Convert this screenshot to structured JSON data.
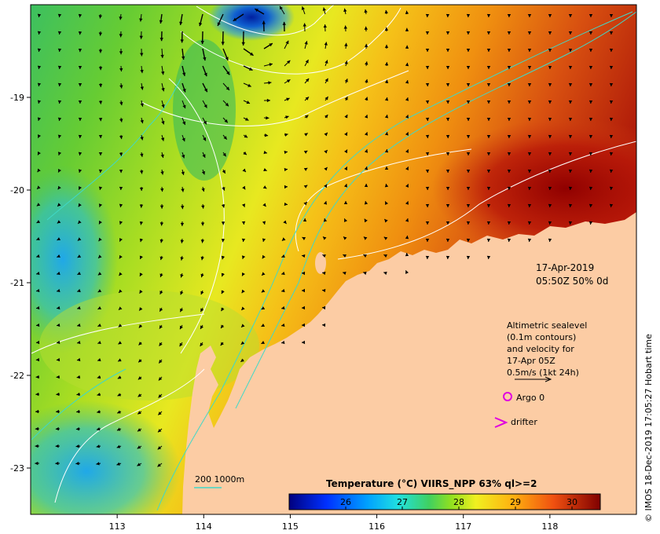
{
  "map": {
    "x_axis_ticks": [
      "113",
      "114",
      "115",
      "116",
      "117",
      "118"
    ],
    "y_axis_ticks": [
      "-19",
      "-20",
      "-21",
      "-22",
      "-23"
    ],
    "longitude_range": [
      112.0,
      119.0
    ],
    "latitude_range": [
      -23.5,
      -18.0
    ],
    "annotation": {
      "date": "17-Apr-2019",
      "time": "05:50Z  50% 0d"
    },
    "legend_block": {
      "line1": "Altimetric sealevel",
      "line2": "(0.1m contours)",
      "line3": "and velocity for",
      "line4": "17-Apr 05Z",
      "line5": "0.5m/s (1kt 24h)"
    },
    "argo_label": "Argo 0",
    "drifter_label": "drifter",
    "bathymetry_label": "200  1000m",
    "colorbar": {
      "title": "Temperature (°C) VIIRS_NPP 63% ql>=2",
      "ticks": [
        "26",
        "27",
        "28",
        "29",
        "30"
      ],
      "range": [
        25.0,
        30.5
      ]
    },
    "credit": "© IMOS 18-Dec-2019 17:05:27 Hobart time",
    "colors": {
      "land": "#fccca4",
      "contour": "#ffffff",
      "bathymetry": "#40d8c8",
      "argo": "#e000e0",
      "drifter": "#e000e0"
    }
  }
}
